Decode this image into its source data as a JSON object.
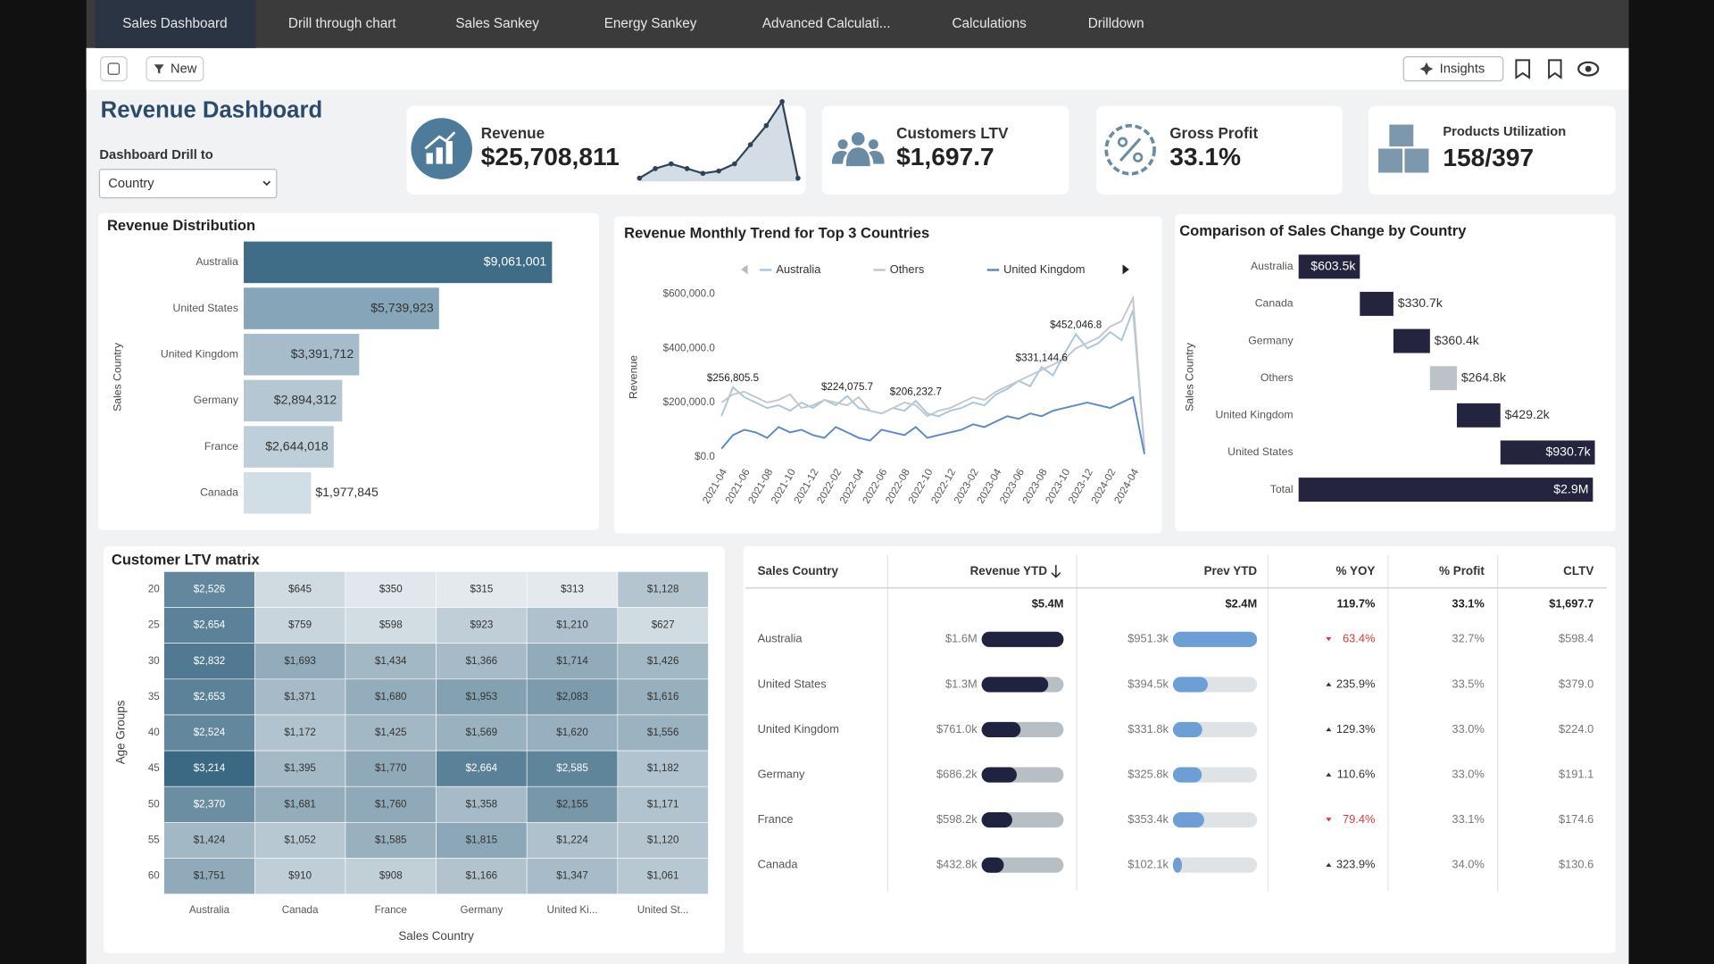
{
  "tabs": [
    "Sales Dashboard",
    "Drill through chart",
    "Sales Sankey",
    "Energy Sankey",
    "Advanced Calculati...",
    "Calculations",
    "Drilldown"
  ],
  "toolbar": {
    "new": "New",
    "insights": "Insights"
  },
  "header": {
    "title": "Revenue Dashboard",
    "drill_label": "Dashboard Drill to",
    "drill_value": "Country"
  },
  "kpis": [
    {
      "label": "Revenue",
      "value": "$25,708,811"
    },
    {
      "label": "Customers LTV",
      "value": "$1,697.7"
    },
    {
      "label": "Gross Profit",
      "value": "33.1%"
    },
    {
      "label": "Products Utilization",
      "value": "158/397"
    }
  ],
  "revenue_sparkline": {
    "type": "area",
    "values": [
      1,
      3,
      4,
      3,
      2,
      2.5,
      4,
      8,
      12,
      17,
      1
    ],
    "color": "#2f4358"
  },
  "revenue_distribution": {
    "type": "hbar",
    "title": "Revenue Distribution",
    "y_label": "Sales Country",
    "categories": [
      "Australia",
      "United States",
      "United Kingdom",
      "Germany",
      "France",
      "Canada"
    ],
    "values": [
      9061001,
      5739923,
      3391712,
      2894312,
      2644018,
      1977845
    ],
    "value_labels": [
      "$9,061,001",
      "$5,739,923",
      "$3,391,712",
      "$2,894,312",
      "$2,644,018",
      "$1,977,845"
    ],
    "colors": [
      "#3f6d87",
      "#86a5b8",
      "#a6bccb",
      "#b5c7d3",
      "#bfcfda",
      "#d2dee6"
    ],
    "xlim": [
      0,
      9061001
    ]
  },
  "monthly_trend": {
    "type": "line",
    "title": "Revenue Monthly Trend for Top 3 Countries",
    "y_label": "Revenue",
    "categories": [
      "2021-04",
      null,
      "2021-06",
      null,
      "2021-08",
      null,
      "2021-10",
      null,
      "2021-12",
      null,
      "2022-02",
      null,
      "2022-04",
      null,
      "2022-06",
      null,
      "2022-08",
      null,
      "2022-10",
      null,
      "2022-12",
      null,
      "2023-02",
      null,
      "2023-04",
      null,
      "2023-06",
      null,
      "2023-08",
      null,
      "2023-10",
      null,
      "2023-12",
      null,
      "2024-02",
      null,
      "2024-04",
      null
    ],
    "ylim": [
      0,
      600000
    ],
    "yticks": [
      {
        "value": 0,
        "label": "$0.0"
      },
      {
        "value": 200000,
        "label": "$200,000.0"
      },
      {
        "value": 400000,
        "label": "$400,000.0"
      },
      {
        "value": 600000,
        "label": "$600,000.0"
      }
    ],
    "grid": false,
    "series": [
      {
        "name": "Australia",
        "color": "#a9c6de",
        "values": [
          150000,
          256805.5,
          220000,
          200000,
          180000,
          190000,
          170000,
          200000,
          180000,
          210000,
          190000,
          224075.7,
          180000,
          170000,
          160000,
          180000,
          170000,
          206232.7,
          160000,
          150000,
          170000,
          180000,
          200000,
          190000,
          230000,
          250000,
          280000,
          260000,
          331144.6,
          300000,
          380000,
          452046.8,
          400000,
          420000,
          460000,
          430000,
          540000,
          30000
        ],
        "value_labels": [
          null,
          "$256,805.5",
          null,
          null,
          null,
          null,
          null,
          null,
          null,
          null,
          null,
          "$224,075.7",
          null,
          null,
          null,
          null,
          null,
          "$206,232.7",
          null,
          null,
          null,
          null,
          null,
          null,
          null,
          null,
          null,
          null,
          "$331,144.6",
          null,
          null,
          "$452,046.8",
          null,
          null,
          null,
          null,
          null,
          null
        ]
      },
      {
        "name": "Others",
        "color": "#c3c8cd",
        "values": [
          200000,
          230000,
          240000,
          220000,
          200000,
          210000,
          230000,
          180000,
          190000,
          210000,
          200000,
          190000,
          220000,
          170000,
          160000,
          180000,
          200000,
          190000,
          150000,
          170000,
          180000,
          200000,
          220000,
          210000,
          240000,
          260000,
          280000,
          300000,
          320000,
          340000,
          360000,
          400000,
          420000,
          440000,
          480000,
          500000,
          585000,
          20000
        ]
      },
      {
        "name": "United Kingdom",
        "color": "#5b8ac4",
        "values": [
          30000,
          80000,
          100000,
          90000,
          70000,
          110000,
          90000,
          100000,
          80000,
          70000,
          110000,
          90000,
          70000,
          60000,
          100000,
          90000,
          80000,
          110000,
          70000,
          80000,
          90000,
          100000,
          120000,
          110000,
          130000,
          150000,
          140000,
          160000,
          150000,
          170000,
          180000,
          190000,
          200000,
          190000,
          180000,
          200000,
          220000,
          10000
        ]
      }
    ]
  },
  "sales_change": {
    "type": "waterfall",
    "title": "Comparison of Sales Change by Country",
    "y_label": "Sales Country",
    "categories": [
      "Australia",
      "Canada",
      "Germany",
      "Others",
      "United Kingdom",
      "United States",
      "Total"
    ],
    "values": [
      603500,
      330700,
      360400,
      264800,
      429200,
      930700,
      2900000
    ],
    "value_labels": [
      "$603.5k",
      "$330.7k",
      "$360.4k",
      "$264.8k",
      "$429.2k",
      "$930.7k",
      "$2.9M"
    ],
    "measure": [
      "relative",
      "relative",
      "relative",
      "relative",
      "relative",
      "relative",
      "total"
    ],
    "colors": [
      "#24243f",
      "#24243f",
      "#24243f",
      "#bcc3c8",
      "#24243f",
      "#24243f",
      "#24243f"
    ],
    "xlim": [
      0,
      2919300
    ]
  },
  "ltv_matrix": {
    "type": "heatmap",
    "title": "Customer LTV matrix",
    "y_label": "Age Groups",
    "x_label": "Sales Country",
    "rows": [
      "20",
      "25",
      "30",
      "35",
      "40",
      "45",
      "50",
      "55",
      "60"
    ],
    "columns": [
      "Australia",
      "Canada",
      "France",
      "Germany",
      "United Ki...",
      "United St..."
    ],
    "values": [
      [
        2526,
        645,
        350,
        315,
        313,
        1128
      ],
      [
        2654,
        759,
        598,
        923,
        1210,
        627
      ],
      [
        2832,
        1693,
        1434,
        1366,
        1714,
        1426
      ],
      [
        2653,
        1371,
        1680,
        1953,
        2083,
        1616
      ],
      [
        2524,
        1172,
        1425,
        1569,
        1620,
        1556
      ],
      [
        3214,
        1395,
        1770,
        2664,
        2585,
        1182
      ],
      [
        2370,
        1681,
        1760,
        1358,
        2155,
        1171
      ],
      [
        1424,
        1052,
        1585,
        1815,
        1224,
        1120
      ],
      [
        1751,
        910,
        908,
        1166,
        1347,
        1061
      ]
    ],
    "value_labels": [
      [
        "$2,526",
        "$645",
        "$350",
        "$315",
        "$313",
        "$1,128"
      ],
      [
        "$2,654",
        "$759",
        "$598",
        "$923",
        "$1,210",
        "$627"
      ],
      [
        "$2,832",
        "$1,693",
        "$1,434",
        "$1,366",
        "$1,714",
        "$1,426"
      ],
      [
        "$2,653",
        "$1,371",
        "$1,680",
        "$1,953",
        "$2,083",
        "$1,616"
      ],
      [
        "$2,524",
        "$1,172",
        "$1,425",
        "$1,569",
        "$1,620",
        "$1,556"
      ],
      [
        "$3,214",
        "$1,395",
        "$1,770",
        "$2,664",
        "$2,585",
        "$1,182"
      ],
      [
        "$2,370",
        "$1,681",
        "$1,760",
        "$1,358",
        "$2,155",
        "$1,171"
      ],
      [
        "$1,424",
        "$1,052",
        "$1,585",
        "$1,815",
        "$1,224",
        "$1,120"
      ],
      [
        "$1,751",
        "$910",
        "$908",
        "$1,166",
        "$1,347",
        "$1,061"
      ]
    ],
    "color_scale": [
      "#e3e9ed",
      "#3b6984"
    ]
  },
  "table": {
    "columns": [
      "Sales Country",
      "Revenue YTD",
      "Prev YTD",
      "% YOY",
      "% Profit",
      "CLTV"
    ],
    "totals": [
      "$5.4M",
      "$2.4M",
      "119.7%",
      "33.1%",
      "$1,697.7"
    ],
    "rows": [
      [
        "Australia",
        "$1.6M",
        "$951.3k",
        "63.4%",
        "32.7%",
        "$598.4"
      ],
      [
        "United States",
        "$1.3M",
        "$394.5k",
        "235.9%",
        "33.5%",
        "$379.0"
      ],
      [
        "United Kingdom",
        "$761.0k",
        "$331.8k",
        "129.3%",
        "33.0%",
        "$224.0"
      ],
      [
        "Germany",
        "$686.2k",
        "$325.8k",
        "110.6%",
        "33.0%",
        "$191.1"
      ],
      [
        "France",
        "$598.2k",
        "$353.4k",
        "79.4%",
        "33.1%",
        "$174.6"
      ],
      [
        "Canada",
        "$432.8k",
        "$102.1k",
        "323.9%",
        "34.0%",
        "$130.6"
      ]
    ],
    "revenue_ytd_values": [
      1600000,
      1300000,
      761000,
      686200,
      598200,
      432800
    ],
    "prev_ytd_values": [
      951300,
      394500,
      331800,
      325800,
      353400,
      102100
    ],
    "yoy_trend": [
      "down",
      "up",
      "up",
      "up",
      "down",
      "up"
    ],
    "revenue_bar_color": "#1f2340",
    "prev_bar_color": "#6d9fd6",
    "down_color": "#d93a3a"
  }
}
